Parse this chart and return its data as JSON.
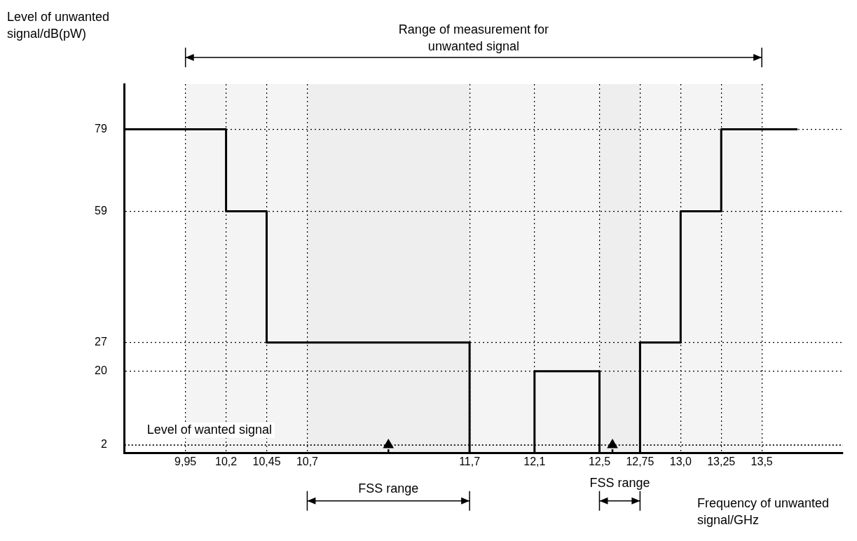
{
  "chart_data": {
    "type": "step",
    "xlabel": "Frequency of unwanted signal/GHz",
    "ylabel": "Level of unwanted signal/dB(pW)",
    "xlim": [
      9.575,
      14.0
    ],
    "ylim": [
      0,
      90
    ],
    "xticks": [
      {
        "value": 9.95,
        "label": "9,95"
      },
      {
        "value": 10.2,
        "label": "10,2"
      },
      {
        "value": 10.45,
        "label": "10,45"
      },
      {
        "value": 10.7,
        "label": "10,7"
      },
      {
        "value": 11.7,
        "label": "11,7"
      },
      {
        "value": 12.1,
        "label": "12,1"
      },
      {
        "value": 12.5,
        "label": "12,5"
      },
      {
        "value": 12.75,
        "label": "12,75"
      },
      {
        "value": 13.0,
        "label": "13,0"
      },
      {
        "value": 13.25,
        "label": "13,25"
      },
      {
        "value": 13.5,
        "label": "13,5"
      }
    ],
    "yticks": [
      2,
      20,
      27,
      59,
      79
    ],
    "grid": true,
    "marker": "none",
    "line_style": "solid",
    "series": [
      {
        "color": "#000000",
        "x": [
          9.575,
          10.2,
          10.45,
          11.7,
          12.1,
          12.5,
          12.75,
          13.0,
          13.25,
          13.72
        ],
        "values": [
          79,
          59,
          27,
          0,
          20,
          0,
          27,
          59,
          79,
          79
        ]
      },
      {
        "type": "lollipop",
        "color": "#000000",
        "marker": "triangle",
        "x": [
          11.2,
          12.58
        ],
        "values": [
          2,
          2
        ]
      }
    ],
    "ref_lines": [
      {
        "axis": "y",
        "value": 2,
        "label": "Level of wanted signal"
      }
    ],
    "bands": [
      {
        "axis": "x",
        "from": 9.95,
        "to": 13.5,
        "label": "Range of measurement for unwanted signal",
        "color": "#f4f4f4"
      },
      {
        "axis": "x",
        "from": 10.7,
        "to": 11.7,
        "label": "FSS range",
        "color": "#eeeeee"
      },
      {
        "axis": "x",
        "from": 12.5,
        "to": 12.75,
        "label": "FSS range",
        "color": "#eeeeee"
      }
    ]
  }
}
